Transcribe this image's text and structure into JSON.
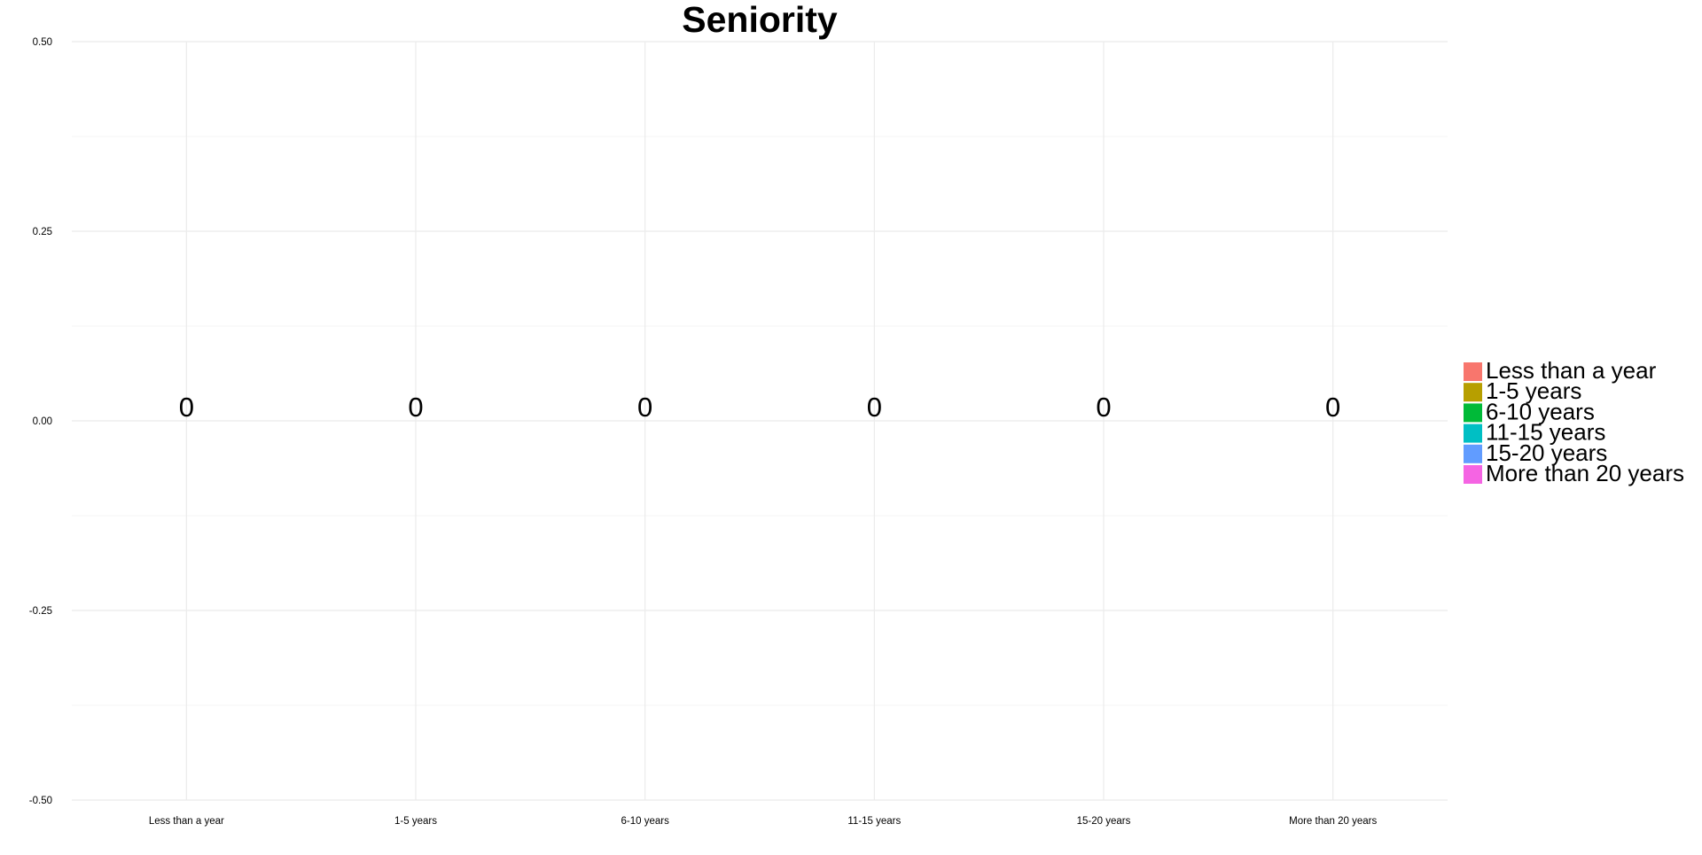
{
  "chart_data": {
    "type": "bar",
    "title": "Seniority",
    "xlabel": "",
    "ylabel": "",
    "categories": [
      "Less than a year",
      "1-5 years",
      "6-10 years",
      "11-15 years",
      "15-20 years",
      "More than 20 years"
    ],
    "values": [
      0,
      0,
      0,
      0,
      0,
      0
    ],
    "data_labels": [
      "0",
      "0",
      "0",
      "0",
      "0",
      "0"
    ],
    "ylim": [
      -0.5,
      0.5
    ],
    "yticks": [
      -0.5,
      -0.25,
      0,
      0.25,
      0.5
    ],
    "ytick_labels": [
      "-0.50",
      "-0.25",
      "0.00",
      "0.25",
      "0.50"
    ],
    "grid": true,
    "legend": {
      "position": "right",
      "entries": [
        {
          "label": "Less than a year",
          "color": "#F8766D"
        },
        {
          "label": "1-5 years",
          "color": "#B79F00"
        },
        {
          "label": "6-10 years",
          "color": "#00BA38"
        },
        {
          "label": "11-15 years",
          "color": "#00BFC4"
        },
        {
          "label": "15-20 years",
          "color": "#619CFF"
        },
        {
          "label": "More than 20 years",
          "color": "#F564E3"
        }
      ]
    }
  }
}
